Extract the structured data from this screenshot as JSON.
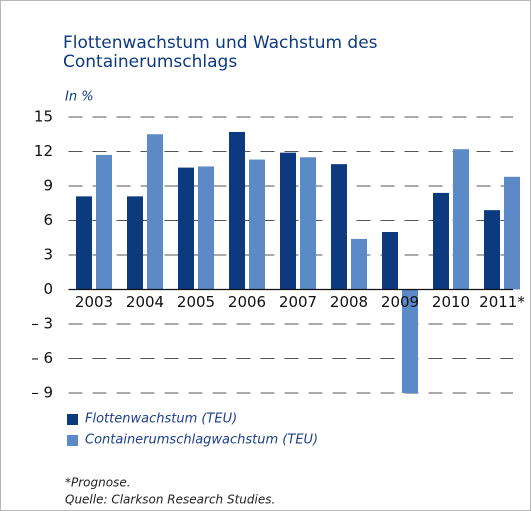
{
  "chart_data": {
    "type": "bar",
    "title": "Flottenwachstum und Wachstum des Containerumschlags",
    "subtitle": "In %",
    "categories": [
      "2003",
      "2004",
      "2005",
      "2006",
      "2007",
      "2008",
      "2009",
      "2010",
      "2011*"
    ],
    "series": [
      {
        "name": "Flottenwachstum (TEU)",
        "color": "#0d3a7f",
        "values": [
          8.1,
          8.1,
          10.6,
          13.7,
          11.9,
          10.9,
          5.0,
          8.4,
          6.9
        ]
      },
      {
        "name": "Containerumschlagwachstum (TEU)",
        "color": "#5b8ac6",
        "values": [
          11.7,
          13.5,
          10.7,
          11.3,
          11.5,
          4.4,
          -9.0,
          12.2,
          9.8
        ]
      }
    ],
    "ylim": [
      -9,
      15
    ],
    "yticks": [
      {
        "value": -9,
        "label": "– 9"
      },
      {
        "value": -6,
        "label": "– 6"
      },
      {
        "value": -3,
        "label": "– 3"
      },
      0,
      3,
      6,
      9,
      12,
      15
    ],
    "grid": true,
    "notes": [
      "*Prognose.",
      "Quelle: Clarkson Research Studies."
    ]
  }
}
